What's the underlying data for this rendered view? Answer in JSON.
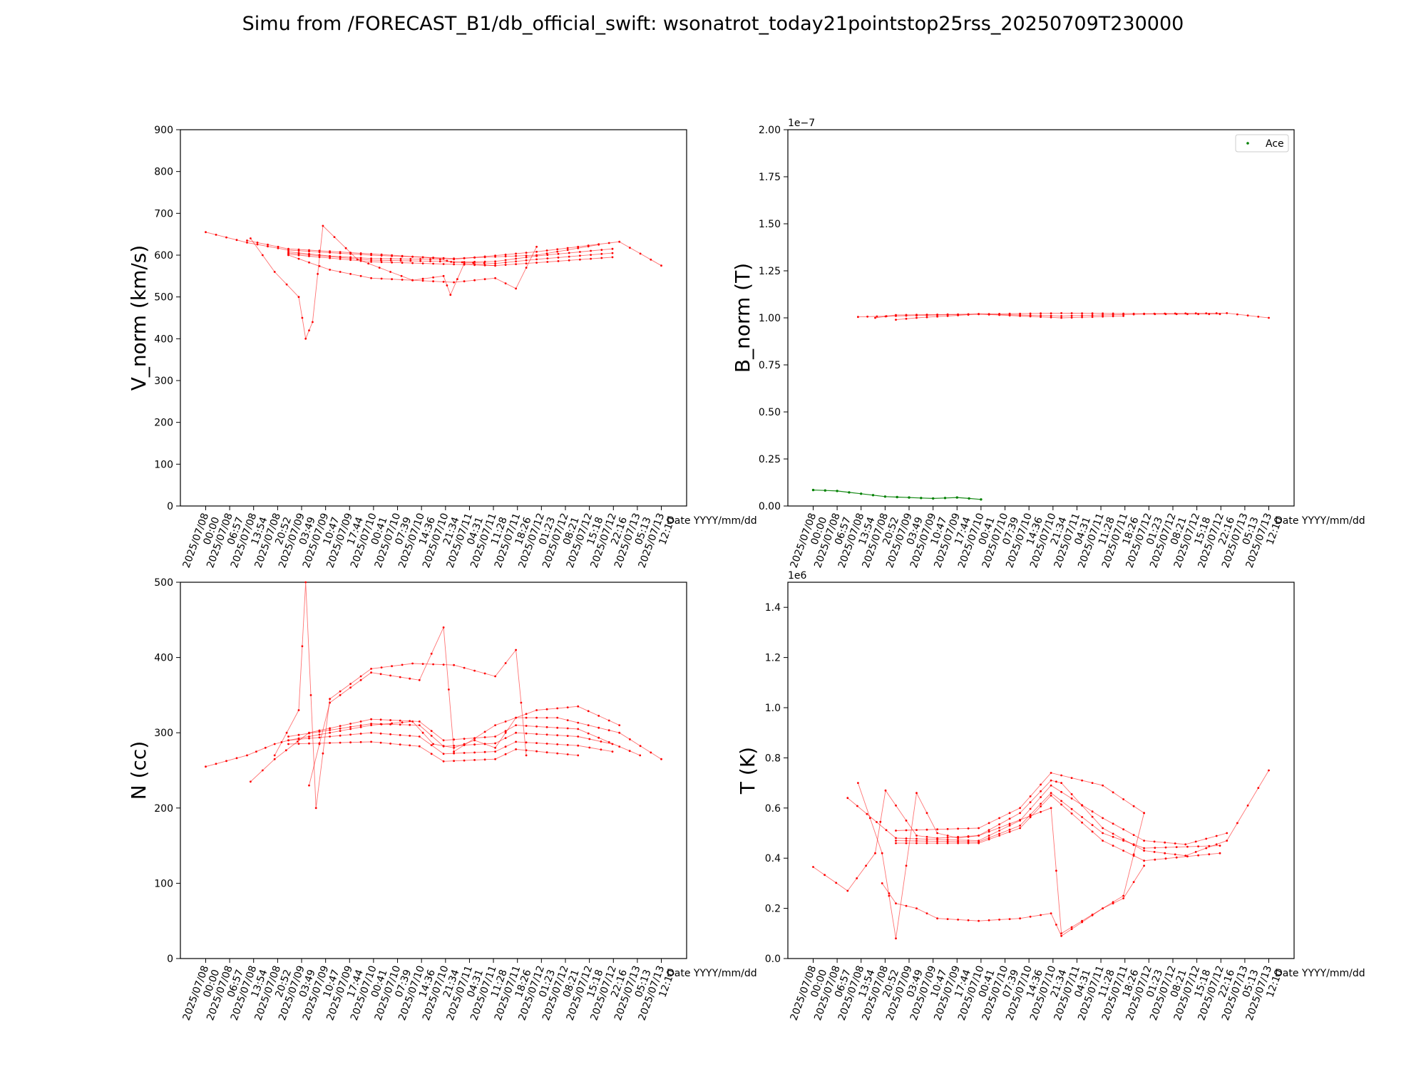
{
  "suptitle": "Simu from /FORECAST_B1/db_official_swift: wsonatrot_today21pointstop25rss_20250709T230000",
  "colors": {
    "simu": "#ff0000",
    "ace": "#008000",
    "axis": "#000000"
  },
  "date_ticks": [
    [
      "2025/07/08",
      "00:00"
    ],
    [
      "2025/07/08",
      "06:57"
    ],
    [
      "2025/07/08",
      "13:54"
    ],
    [
      "2025/07/08",
      "20:52"
    ],
    [
      "2025/07/09",
      "03:49"
    ],
    [
      "2025/07/09",
      "10:47"
    ],
    [
      "2025/07/09",
      "17:44"
    ],
    [
      "2025/07/10",
      "00:41"
    ],
    [
      "2025/07/10",
      "07:39"
    ],
    [
      "2025/07/10",
      "14:36"
    ],
    [
      "2025/07/10",
      "21:34"
    ],
    [
      "2025/07/11",
      "04:31"
    ],
    [
      "2025/07/11",
      "11:28"
    ],
    [
      "2025/07/11",
      "18:26"
    ],
    [
      "2025/07/12",
      "01:23"
    ],
    [
      "2025/07/12",
      "08:21"
    ],
    [
      "2025/07/12",
      "15:18"
    ],
    [
      "2025/07/12",
      "22:16"
    ],
    [
      "2025/07/13",
      "05:13"
    ],
    [
      "2025/07/13",
      "12:10"
    ]
  ],
  "chart_data": [
    {
      "type": "line",
      "ylabel": "V_norm (km/s)",
      "xlabel": "Date YYYY/mm/dd",
      "ylim": [
        0,
        900
      ],
      "yticks": [
        "0",
        "100",
        "200",
        "300",
        "400",
        "500",
        "600",
        "700",
        "800",
        "900"
      ],
      "offset_label": "",
      "legend": [],
      "series": [
        {
          "x": [
            "2025/07/08 00:00",
            "2025/07/08 12:00",
            "2025/07/09 00:00",
            "2025/07/10 00:00",
            "2025/07/11 00:00",
            "2025/07/12 00:00",
            "2025/07/12 18:00"
          ],
          "values": [
            655,
            630,
            612,
            600,
            592,
            600,
            625
          ]
        },
        {
          "x": [
            "2025/07/08 12:00",
            "2025/07/09 00:00",
            "2025/07/10 00:00",
            "2025/07/11 00:00",
            "2025/07/12 00:00",
            "2025/07/13 00:00",
            "2025/07/13 12:10"
          ],
          "values": [
            635,
            615,
            603,
            590,
            608,
            632,
            575
          ]
        },
        {
          "x": [
            "2025/07/09 00:00",
            "2025/07/09 12:00",
            "2025/07/10 00:00",
            "2025/07/10 20:00",
            "2025/07/11 00:00",
            "2025/07/11 12:00",
            "2025/07/12 00:00",
            "2025/07/12 22:00"
          ],
          "values": [
            608,
            598,
            592,
            590,
            583,
            585,
            598,
            615
          ]
        },
        {
          "x": [
            "2025/07/09 00:00",
            "2025/07/10 00:00",
            "2025/07/10 20:00",
            "2025/07/11 12:00",
            "2025/07/12 00:00",
            "2025/07/12 22:00"
          ],
          "values": [
            605,
            588,
            585,
            580,
            590,
            605
          ]
        },
        {
          "x": [
            "2025/07/09 00:00",
            "2025/07/10 00:00",
            "2025/07/11 00:00",
            "2025/07/11 12:00",
            "2025/07/12 00:00",
            "2025/07/12 22:00"
          ],
          "values": [
            602,
            584,
            578,
            575,
            582,
            595
          ]
        },
        {
          "x": [
            "2025/07/09 00:00",
            "2025/07/09 12:00",
            "2025/07/10 00:00",
            "2025/07/10 12:00",
            "2025/07/10 21:00",
            "2025/07/10 23:00",
            "2025/07/11 03:00",
            "2025/07/11 12:00"
          ],
          "values": [
            600,
            565,
            545,
            540,
            550,
            505,
            580,
            575
          ]
        },
        {
          "x": [
            "2025/07/08 13:00",
            "2025/07/08 20:00",
            "2025/07/09 03:00",
            "2025/07/09 05:00",
            "2025/07/09 07:00",
            "2025/07/09 10:00",
            "2025/07/09 20:00",
            "2025/07/10 12:00",
            "2025/07/11 00:00",
            "2025/07/11 12:00",
            "2025/07/11 18:00",
            "2025/07/12 00:00"
          ],
          "values": [
            640,
            560,
            500,
            400,
            440,
            670,
            590,
            540,
            535,
            545,
            520,
            620
          ]
        }
      ]
    },
    {
      "type": "scatter",
      "ylabel": "B_norm (T)",
      "xlabel": "Date YYYY/mm/dd",
      "ylim": [
        0,
        2e-07
      ],
      "yticks": [
        "0.00",
        "0.25",
        "0.50",
        "0.75",
        "1.00",
        "1.25",
        "1.50",
        "1.75",
        "2.00"
      ],
      "offset_label": "1e−7",
      "legend": [
        "Ace"
      ],
      "series": [
        {
          "x": [
            "2025/07/08 13:00",
            "2025/07/09 00:00",
            "2025/07/10 00:00",
            "2025/07/11 00:00",
            "2025/07/12 00:00",
            "2025/07/13 00:00",
            "2025/07/13 12:10"
          ],
          "values": [
            1.005e-07,
            1.01e-07,
            1.02e-07,
            1.025e-07,
            1.022e-07,
            1.025e-07,
            1e-07
          ]
        },
        {
          "x": [
            "2025/07/08 18:00",
            "2025/07/09 00:00",
            "2025/07/10 00:00",
            "2025/07/11 00:00",
            "2025/07/12 00:00",
            "2025/07/12 22:00"
          ],
          "values": [
            1e-07,
            1.015e-07,
            1.02e-07,
            1.01e-07,
            1.02e-07,
            1.02e-07
          ]
        },
        {
          "x": [
            "2025/07/09 00:00",
            "2025/07/09 06:00",
            "2025/07/10 00:00",
            "2025/07/11 00:00",
            "2025/07/11 18:00"
          ],
          "values": [
            9.9e-08,
            1e-07,
            1.02e-07,
            1e-07,
            1.01e-07
          ]
        },
        {
          "name": "Ace",
          "x": [
            "2025/07/08 00:00",
            "2025/07/08 06:57",
            "2025/07/08 13:54",
            "2025/07/08 20:52",
            "2025/07/09 03:49",
            "2025/07/09 10:47",
            "2025/07/09 17:44",
            "2025/07/10 00:41"
          ],
          "values": [
            8.5e-09,
            8e-09,
            6.5e-09,
            5e-09,
            4.5e-09,
            4e-09,
            4.5e-09,
            3.5e-09
          ]
        }
      ]
    },
    {
      "type": "line",
      "ylabel": "N (cc)",
      "xlabel": "Date YYYY/mm/dd",
      "ylim": [
        0,
        500
      ],
      "yticks": [
        "0",
        "100",
        "200",
        "300",
        "400",
        "500"
      ],
      "offset_label": "",
      "legend": [],
      "series": [
        {
          "x": [
            "2025/07/08 00:00",
            "2025/07/08 12:00",
            "2025/07/08 20:00",
            "2025/07/09 00:00",
            "2025/07/09 12:00",
            "2025/07/10 00:00",
            "2025/07/10 12:00",
            "2025/07/10 18:00",
            "2025/07/11 00:00",
            "2025/07/11 06:00",
            "2025/07/11 12:00",
            "2025/07/11 18:00",
            "2025/07/12 06:00",
            "2025/07/13 00:00",
            "2025/07/13 12:10"
          ],
          "values": [
            255,
            270,
            285,
            290,
            300,
            310,
            315,
            285,
            280,
            290,
            280,
            320,
            320,
            300,
            265
          ]
        },
        {
          "x": [
            "2025/07/08 13:00",
            "2025/07/08 20:00",
            "2025/07/09 06:00",
            "2025/07/10 00:00",
            "2025/07/10 14:00",
            "2025/07/10 21:00",
            "2025/07/11 12:00",
            "2025/07/11 18:00",
            "2025/07/12 12:00",
            "2025/07/13 06:00"
          ],
          "values": [
            235,
            265,
            300,
            318,
            315,
            290,
            295,
            310,
            305,
            270
          ]
        },
        {
          "x": [
            "2025/07/09 00:00",
            "2025/07/10 00:00",
            "2025/07/10 14:00",
            "2025/07/10 21:00",
            "2025/07/11 12:00",
            "2025/07/11 18:00",
            "2025/07/12 12:00",
            "2025/07/12 22:00"
          ],
          "values": [
            295,
            312,
            310,
            282,
            286,
            300,
            295,
            285
          ]
        },
        {
          "x": [
            "2025/07/09 00:00",
            "2025/07/10 00:00",
            "2025/07/10 14:00",
            "2025/07/10 21:00",
            "2025/07/11 12:00",
            "2025/07/11 18:00",
            "2025/07/12 12:00",
            "2025/07/12 22:00"
          ],
          "values": [
            290,
            300,
            295,
            272,
            275,
            288,
            283,
            275
          ]
        },
        {
          "x": [
            "2025/07/09 00:00",
            "2025/07/10 00:00",
            "2025/07/10 14:00",
            "2025/07/10 21:00",
            "2025/07/11 12:00",
            "2025/07/11 18:00",
            "2025/07/12 12:00"
          ],
          "values": [
            285,
            288,
            282,
            262,
            265,
            278,
            270
          ]
        },
        {
          "x": [
            "2025/07/09 06:00",
            "2025/07/09 12:00",
            "2025/07/10 00:00",
            "2025/07/10 14:00",
            "2025/07/10 21:00",
            "2025/07/11 00:00",
            "2025/07/11 12:00",
            "2025/07/12 00:00",
            "2025/07/12 12:00",
            "2025/07/13 00:00"
          ],
          "values": [
            230,
            340,
            380,
            370,
            440,
            275,
            310,
            330,
            335,
            310
          ]
        },
        {
          "x": [
            "2025/07/08 20:00",
            "2025/07/09 03:00",
            "2025/07/09 05:00",
            "2025/07/09 08:00",
            "2025/07/09 12:00",
            "2025/07/10 00:00",
            "2025/07/10 12:00",
            "2025/07/11 00:00",
            "2025/07/11 12:00",
            "2025/07/11 18:00",
            "2025/07/11 21:00"
          ],
          "values": [
            270,
            330,
            500,
            200,
            345,
            385,
            392,
            390,
            375,
            410,
            270
          ]
        }
      ]
    },
    {
      "type": "line",
      "ylabel": "T (K)",
      "xlabel": "Date YYYY/mm/dd",
      "ylim": [
        0,
        1500000.0
      ],
      "yticks": [
        "0.0",
        "0.2",
        "0.4",
        "0.6",
        "0.8",
        "1.0",
        "1.2",
        "1.4"
      ],
      "offset_label": "1e6",
      "legend": [],
      "series": [
        {
          "x": [
            "2025/07/08 00:00",
            "2025/07/08 10:00",
            "2025/07/08 18:00",
            "2025/07/08 21:00",
            "2025/07/09 06:00",
            "2025/07/09 12:00",
            "2025/07/10 00:00",
            "2025/07/10 12:00",
            "2025/07/10 21:00",
            "2025/07/11 00:00",
            "2025/07/11 12:00",
            "2025/07/12 00:00",
            "2025/07/12 12:00",
            "2025/07/13 00:00",
            "2025/07/13 12:10"
          ],
          "values": [
            365000,
            270000,
            420000,
            670000,
            490000,
            480000,
            490000,
            580000,
            710000,
            700000,
            520000,
            430000,
            410000,
            470000,
            750000
          ]
        },
        {
          "x": [
            "2025/07/08 10:00",
            "2025/07/09 00:00",
            "2025/07/10 00:00",
            "2025/07/10 12:00",
            "2025/07/10 21:00",
            "2025/07/11 12:00",
            "2025/07/12 00:00",
            "2025/07/12 12:00",
            "2025/07/13 00:00"
          ],
          "values": [
            640000,
            480000,
            470000,
            550000,
            690000,
            560000,
            470000,
            455000,
            500000
          ]
        },
        {
          "x": [
            "2025/07/09 00:00",
            "2025/07/10 00:00",
            "2025/07/10 12:00",
            "2025/07/10 21:00",
            "2025/07/11 12:00",
            "2025/07/12 00:00",
            "2025/07/12 22:00"
          ],
          "values": [
            470000,
            465000,
            530000,
            660000,
            500000,
            440000,
            450000
          ]
        },
        {
          "x": [
            "2025/07/09 00:00",
            "2025/07/10 00:00",
            "2025/07/10 12:00",
            "2025/07/10 21:00",
            "2025/07/11 12:00",
            "2025/07/12 00:00",
            "2025/07/12 22:00"
          ],
          "values": [
            460000,
            460000,
            520000,
            650000,
            470000,
            390000,
            420000
          ]
        },
        {
          "x": [
            "2025/07/09 00:00",
            "2025/07/10 00:00",
            "2025/07/10 12:00",
            "2025/07/10 21:00",
            "2025/07/11 12:00",
            "2025/07/12 00:00"
          ],
          "values": [
            510000,
            520000,
            600000,
            740000,
            690000,
            580000
          ]
        },
        {
          "x": [
            "2025/07/08 13:00",
            "2025/07/08 20:00",
            "2025/07/09 00:00",
            "2025/07/09 06:00",
            "2025/07/09 12:00",
            "2025/07/09 18:00",
            "2025/07/10 00:00",
            "2025/07/10 21:00",
            "2025/07/11 00:00",
            "2025/07/11 18:00",
            "2025/07/12 00:00"
          ],
          "values": [
            700000,
            420000,
            80000,
            660000,
            500000,
            480000,
            490000,
            600000,
            100000,
            250000,
            580000
          ]
        },
        {
          "x": [
            "2025/07/08 20:00",
            "2025/07/09 00:00",
            "2025/07/09 06:00",
            "2025/07/09 12:00",
            "2025/07/10 00:00",
            "2025/07/10 12:00",
            "2025/07/10 21:00",
            "2025/07/11 00:00",
            "2025/07/11 12:00",
            "2025/07/11 18:00",
            "2025/07/12 00:00"
          ],
          "values": [
            300000,
            220000,
            200000,
            160000,
            150000,
            160000,
            180000,
            90000,
            200000,
            240000,
            370000
          ]
        }
      ]
    }
  ]
}
